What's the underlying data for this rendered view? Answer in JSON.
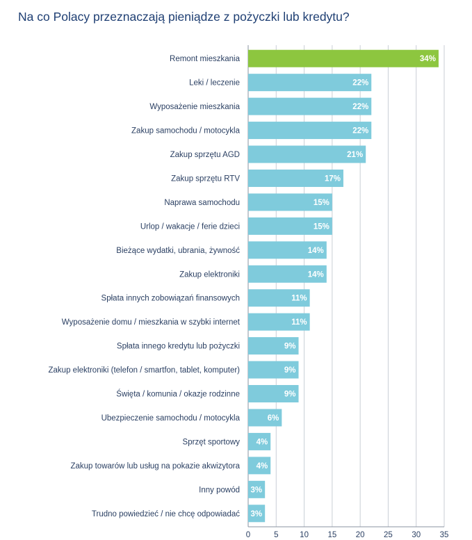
{
  "chart_data": {
    "type": "bar",
    "orientation": "horizontal",
    "title": "Na co Polacy przeznaczają pieniądze z pożyczki lub kredytu?",
    "categories": [
      "Remont mieszkania",
      "Leki / leczenie",
      "Wyposażenie mieszkania",
      "Zakup samochodu / motocykla",
      "Zakup sprzętu AGD",
      "Zakup sprzętu RTV",
      "Naprawa samochodu",
      "Urlop / wakacje / ferie dzieci",
      "Bieżące wydatki, ubrania, żywność",
      "Zakup elektroniki",
      "Spłata innych zobowiązań finansowych",
      "Wyposażenie domu / mieszkania w szybki internet",
      "Spłata innego kredytu lub pożyczki",
      "Zakup elektroniki (telefon / smartfon, tablet, komputer)",
      "Święta / komunia / okazje rodzinne",
      "Ubezpieczenie samochodu / motocykla",
      "Sprzęt sportowy",
      "Zakup towarów lub usług na pokazie akwizytora",
      "Inny powód",
      "Trudno powiedzieć / nie chcę odpowiadać"
    ],
    "values": [
      34,
      22,
      22,
      22,
      21,
      17,
      15,
      15,
      14,
      14,
      11,
      11,
      9,
      9,
      9,
      6,
      4,
      4,
      3,
      3
    ],
    "value_labels": [
      "34%",
      "22%",
      "22%",
      "22%",
      "21%",
      "17%",
      "15%",
      "15%",
      "14%",
      "14%",
      "11%",
      "11%",
      "9%",
      "9%",
      "9%",
      "6%",
      "4%",
      "4%",
      "3%",
      "3%"
    ],
    "xlim": [
      0,
      35
    ],
    "xticks": [
      0,
      5,
      10,
      15,
      20,
      25,
      30,
      35
    ],
    "xlabel": "",
    "ylabel": "",
    "grid": true,
    "colors": {
      "highlight": "#8dc63f",
      "default": "#7fcbdc"
    },
    "highlight_index": 0
  }
}
